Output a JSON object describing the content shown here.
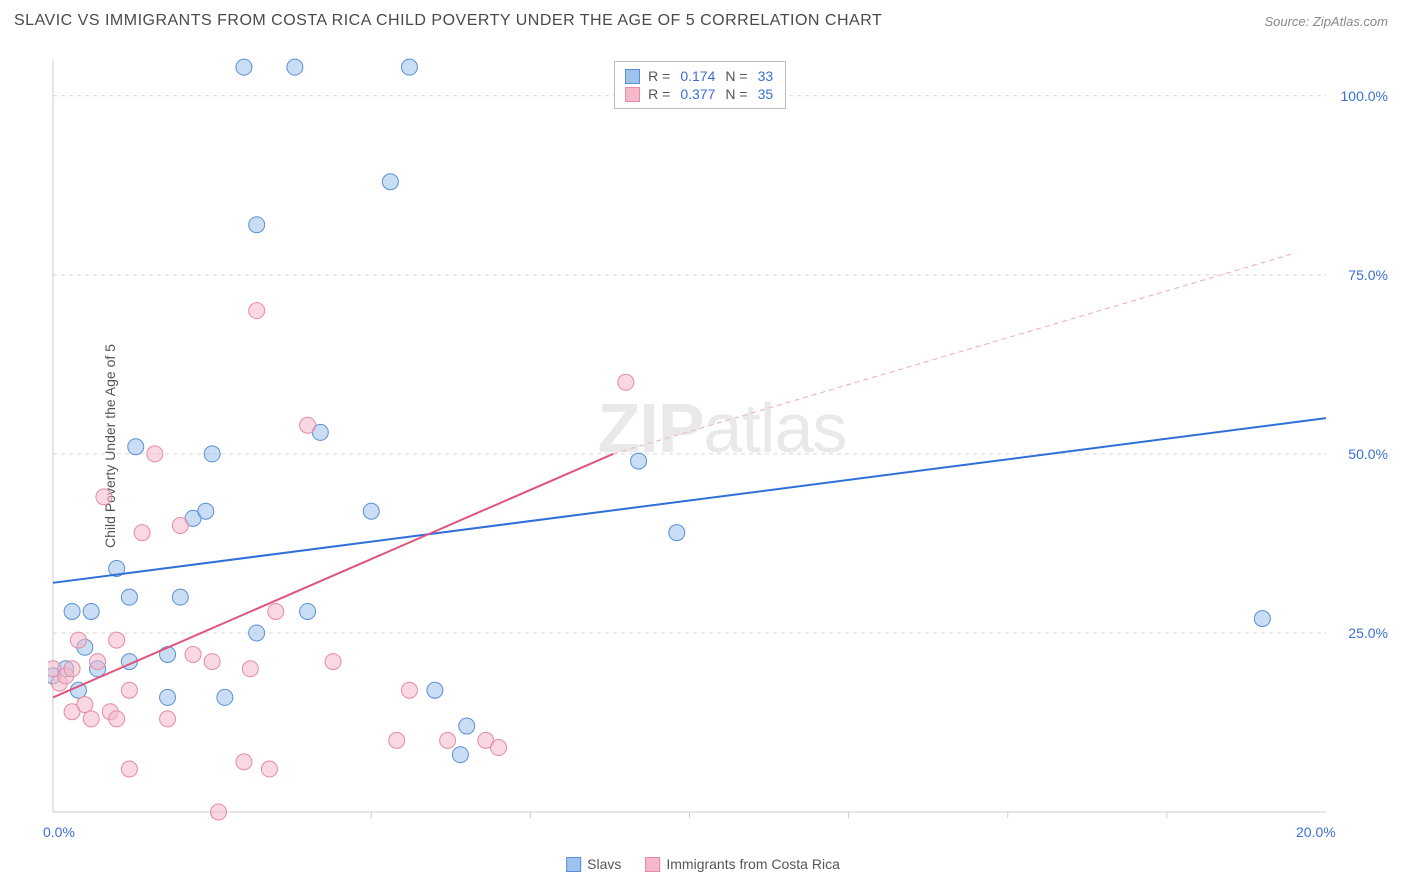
{
  "title": "SLAVIC VS IMMIGRANTS FROM COSTA RICA CHILD POVERTY UNDER THE AGE OF 5 CORRELATION CHART",
  "source_prefix": "Source: ",
  "source": "ZipAtlas.com",
  "ylabel": "Child Poverty Under the Age of 5",
  "watermark_zip": "ZIP",
  "watermark_atlas": "atlas",
  "chart": {
    "type": "scatter",
    "xlim": [
      0,
      20
    ],
    "ylim": [
      0,
      105
    ],
    "x_ticks": [
      0,
      20
    ],
    "x_tick_labels": [
      "0.0%",
      "20.0%"
    ],
    "x_minor_ticks": [
      2.5,
      5,
      7.5,
      10,
      12.5,
      15,
      17.5
    ],
    "y_ticks": [
      25,
      50,
      75,
      100
    ],
    "y_tick_labels": [
      "25.0%",
      "50.0%",
      "75.0%",
      "100.0%"
    ],
    "background_color": "#ffffff",
    "grid_color": "#d8d8d8",
    "axis_color": "#cccccc",
    "tick_label_color": "#3a6fd8",
    "title_color": "#4a4a4a",
    "title_fontsize": 16,
    "label_fontsize": 14,
    "marker_radius": 8,
    "marker_opacity": 0.55,
    "series": [
      {
        "name": "Slavs",
        "color_fill": "#9dc3ed",
        "color_stroke": "#5a8fd6",
        "R": "0.174",
        "N": "33",
        "trend": {
          "x1": 0,
          "y1": 32,
          "x2": 20,
          "y2": 55,
          "color": "#2e6fd8",
          "width": 2,
          "dash": ""
        },
        "points": [
          [
            0.0,
            19
          ],
          [
            0.2,
            20
          ],
          [
            0.3,
            28
          ],
          [
            0.4,
            17
          ],
          [
            0.5,
            23
          ],
          [
            0.6,
            28
          ],
          [
            0.7,
            20
          ],
          [
            1.0,
            34
          ],
          [
            1.2,
            21
          ],
          [
            1.2,
            30
          ],
          [
            1.3,
            51
          ],
          [
            1.8,
            22
          ],
          [
            1.8,
            16
          ],
          [
            2.0,
            30
          ],
          [
            2.2,
            41
          ],
          [
            2.4,
            42
          ],
          [
            2.5,
            50
          ],
          [
            2.7,
            16
          ],
          [
            3.0,
            104
          ],
          [
            3.2,
            25
          ],
          [
            3.2,
            82
          ],
          [
            3.8,
            104
          ],
          [
            4.0,
            28
          ],
          [
            4.2,
            53
          ],
          [
            5.0,
            42
          ],
          [
            5.3,
            88
          ],
          [
            5.6,
            104
          ],
          [
            6.0,
            17
          ],
          [
            6.4,
            8
          ],
          [
            6.5,
            12
          ],
          [
            9.2,
            49
          ],
          [
            9.8,
            39
          ],
          [
            19.0,
            27
          ]
        ]
      },
      {
        "name": "Immigrants from Costa Rica",
        "color_fill": "#f4b8c8",
        "color_stroke": "#e68aa6",
        "R": "0.377",
        "N": "35",
        "trend": {
          "x1": 0,
          "y1": 16,
          "x2": 8.8,
          "y2": 50,
          "color": "#e0557d",
          "width": 2,
          "dash": ""
        },
        "trend_ext": {
          "x1": 8.8,
          "y1": 50,
          "x2": 19.5,
          "y2": 78,
          "color": "#f0a8bb",
          "width": 1,
          "dash": "5,4"
        },
        "points": [
          [
            0.0,
            20
          ],
          [
            0.1,
            18
          ],
          [
            0.2,
            19
          ],
          [
            0.3,
            20
          ],
          [
            0.3,
            14
          ],
          [
            0.4,
            24
          ],
          [
            0.5,
            15
          ],
          [
            0.6,
            13
          ],
          [
            0.7,
            21
          ],
          [
            0.8,
            44
          ],
          [
            0.9,
            14
          ],
          [
            1.0,
            24
          ],
          [
            1.0,
            13
          ],
          [
            1.2,
            17
          ],
          [
            1.2,
            6
          ],
          [
            1.4,
            39
          ],
          [
            1.6,
            50
          ],
          [
            1.8,
            13
          ],
          [
            2.0,
            40
          ],
          [
            2.2,
            22
          ],
          [
            2.5,
            21
          ],
          [
            2.6,
            0
          ],
          [
            3.0,
            7
          ],
          [
            3.1,
            20
          ],
          [
            3.2,
            70
          ],
          [
            3.4,
            6
          ],
          [
            3.5,
            28
          ],
          [
            4.0,
            54
          ],
          [
            4.4,
            21
          ],
          [
            5.4,
            10
          ],
          [
            5.6,
            17
          ],
          [
            6.2,
            10
          ],
          [
            6.8,
            10
          ],
          [
            7.0,
            9
          ],
          [
            9.0,
            60
          ]
        ]
      }
    ]
  },
  "stats_labels": {
    "R": "R  =",
    "N": "N  ="
  },
  "legend_series": [
    "Slavs",
    "Immigrants from Costa Rica"
  ]
}
